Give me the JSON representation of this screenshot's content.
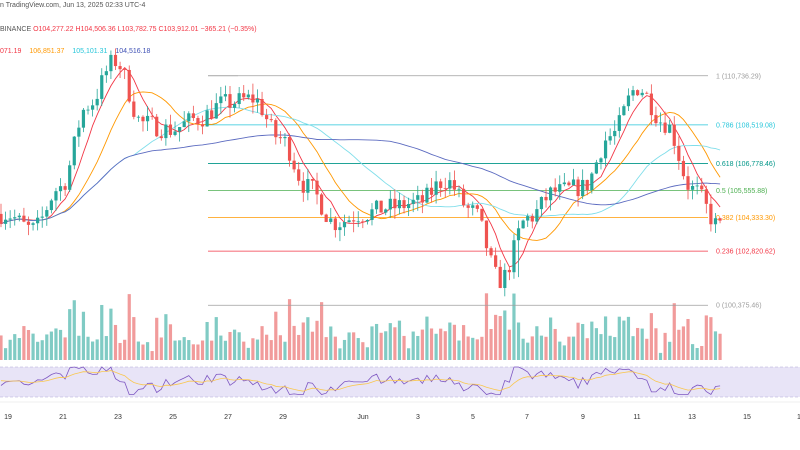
{
  "header": {
    "credit": "n TradingView.com, Jun 13, 2025 02:33 UTC-4",
    "exchange": "BINANCE",
    "ohlc": {
      "open": "O104,277.22",
      "high": "H104,506.36",
      "low": "L103,782.75",
      "close": "C103,912.01",
      "change": "−365.21 (−0.35%)"
    },
    "moving_averages": [
      {
        "value": "071.19",
        "color": "#f23645"
      },
      {
        "value": "106,851.37",
        "color": "#ff9800"
      },
      {
        "value": "105,101.31",
        "color": "#26c6da"
      },
      {
        "value": "104,516.18",
        "color": "#3f51b5"
      }
    ]
  },
  "colors": {
    "up": "#26a69a",
    "down": "#ef5350",
    "up_volume": "#80cbc4",
    "down_volume": "#f19b9b",
    "rsi_fill": "#e8e4f7"
  },
  "chart_data": {
    "type": "candlestick",
    "x_ticks": [
      "19",
      "21",
      "23",
      "25",
      "27",
      "29",
      "Jun",
      "3",
      "5",
      "7",
      "9",
      "11",
      "13",
      "15",
      "1"
    ],
    "fib_levels": [
      {
        "label": "1 (110,736.29)",
        "ratio": 1,
        "price": 110736.29,
        "color": "#9e9e9e"
      },
      {
        "label": "0.786 (108,519.08)",
        "ratio": 0.786,
        "price": 108519.08,
        "color": "#26c6da"
      },
      {
        "label": "0.618 (106,778.46)",
        "ratio": 0.618,
        "price": 106778.46,
        "color": "#009688"
      },
      {
        "label": "0.5 (105,555.88)",
        "ratio": 0.5,
        "price": 105555.88,
        "color": "#4caf50"
      },
      {
        "label": "0.382 (104,333.30)",
        "ratio": 0.382,
        "price": 104333.3,
        "color": "#ff9800"
      },
      {
        "label": "0.236 (102,820.62)",
        "ratio": 0.236,
        "price": 102820.62,
        "color": "#f23645"
      },
      {
        "label": "0 (100,375.46)",
        "ratio": 0,
        "price": 100375.46,
        "color": "#9e9e9e"
      }
    ],
    "price_range": [
      98400,
      113300
    ],
    "date_range": [
      "2025-05-18",
      "2025-06-16"
    ],
    "series_close": [
      [
        "2025-05-18",
        104500
      ],
      [
        "2025-05-19",
        103800
      ],
      [
        "2025-05-20",
        105700
      ],
      [
        "2025-05-21",
        109400
      ],
      [
        "2025-05-22",
        111400
      ],
      [
        "2025-05-23",
        108600
      ],
      [
        "2025-05-24",
        108300
      ],
      [
        "2025-05-25",
        108800
      ],
      [
        "2025-05-26",
        109500
      ],
      [
        "2025-05-27",
        109700
      ],
      [
        "2025-05-28",
        107900
      ],
      [
        "2025-05-29",
        105700
      ],
      [
        "2025-05-30",
        104100
      ],
      [
        "2025-05-31",
        104500
      ],
      [
        "2025-06-01",
        104800
      ],
      [
        "2025-06-02",
        105000
      ],
      [
        "2025-06-03",
        106000
      ],
      [
        "2025-06-04",
        104600
      ],
      [
        "2025-06-05",
        101500
      ],
      [
        "2025-06-06",
        104300
      ],
      [
        "2025-06-07",
        105500
      ],
      [
        "2025-06-08",
        105700
      ],
      [
        "2025-06-09",
        108000
      ],
      [
        "2025-06-10",
        110200
      ],
      [
        "2025-06-11",
        108600
      ],
      [
        "2025-06-12",
        105600
      ],
      [
        "2025-06-13",
        103900
      ]
    ]
  }
}
